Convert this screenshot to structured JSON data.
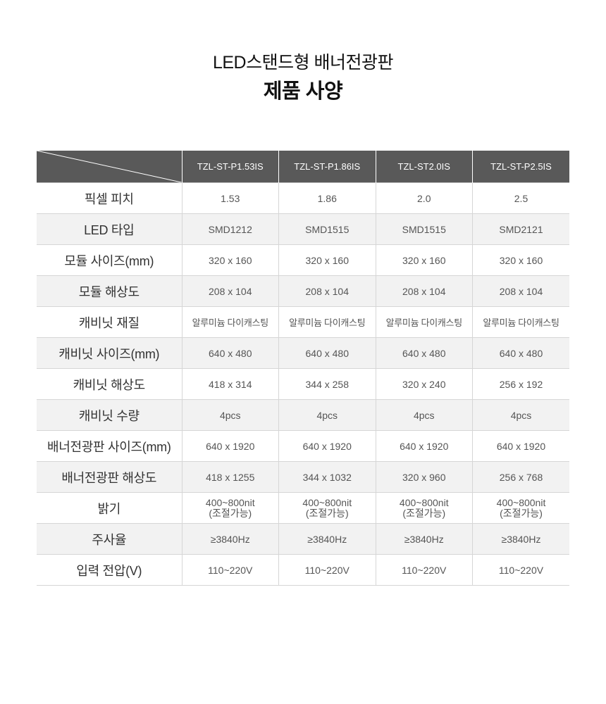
{
  "header": {
    "subtitle": "LED스탠드형 배너전광판",
    "title": "제품 사양"
  },
  "table": {
    "models": [
      "TZL-ST-P1.53IS",
      "TZL-ST-P1.86IS",
      "TZL-ST2.0IS",
      "TZL-ST-P2.5IS"
    ],
    "rows": [
      {
        "label": "픽셀 피치",
        "values": [
          "1.53",
          "1.86",
          "2.0",
          "2.5"
        ]
      },
      {
        "label": "LED 타입",
        "values": [
          "SMD1212",
          "SMD1515",
          "SMD1515",
          "SMD2121"
        ]
      },
      {
        "label": "모듈 사이즈(mm)",
        "values": [
          "320 x 160",
          "320 x 160",
          "320 x 160",
          "320 x 160"
        ]
      },
      {
        "label": "모듈 해상도",
        "values": [
          "208 x 104",
          "208 x 104",
          "208 x 104",
          "208 x 104"
        ]
      },
      {
        "label": "캐비닛 재질",
        "values": [
          "알루미늄 다이캐스팅",
          "알루미늄 다이캐스팅",
          "알루미늄 다이캐스팅",
          "알루미늄 다이캐스팅"
        ]
      },
      {
        "label": "캐비닛 사이즈(mm)",
        "values": [
          "640 x 480",
          "640 x 480",
          "640 x 480",
          "640 x 480"
        ]
      },
      {
        "label": "캐비닛 해상도",
        "values": [
          "418 x 314",
          "344 x 258",
          "320 x 240",
          "256 x 192"
        ]
      },
      {
        "label": "캐비닛 수량",
        "values": [
          "4pcs",
          "4pcs",
          "4pcs",
          "4pcs"
        ]
      },
      {
        "label": "배너전광판 사이즈(mm)",
        "values": [
          "640 x 1920",
          "640 x 1920",
          "640 x 1920",
          "640 x 1920"
        ]
      },
      {
        "label": "배너전광판 해상도",
        "values": [
          "418 x 1255",
          "344 x 1032",
          "320 x 960",
          "256 x 768"
        ]
      },
      {
        "label": "밝기",
        "values": [
          {
            "line1": "400~800nit",
            "line2": "(조절가능)"
          },
          {
            "line1": "400~800nit",
            "line2": "(조절가능)"
          },
          {
            "line1": "400~800nit",
            "line2": "(조절가능)"
          },
          {
            "line1": "400~800nit",
            "line2": "(조절가능)"
          }
        ]
      },
      {
        "label": "주사율",
        "values": [
          "≥3840Hz",
          "≥3840Hz",
          "≥3840Hz",
          "≥3840Hz"
        ]
      },
      {
        "label": "입력 전압(V)",
        "values": [
          "110~220V",
          "110~220V",
          "110~220V",
          "110~220V"
        ]
      }
    ]
  },
  "colors": {
    "header_bg": "#595959",
    "header_text": "#ffffff",
    "row_alt_bg": "#f2f2f2",
    "border": "#d6d6d6"
  }
}
